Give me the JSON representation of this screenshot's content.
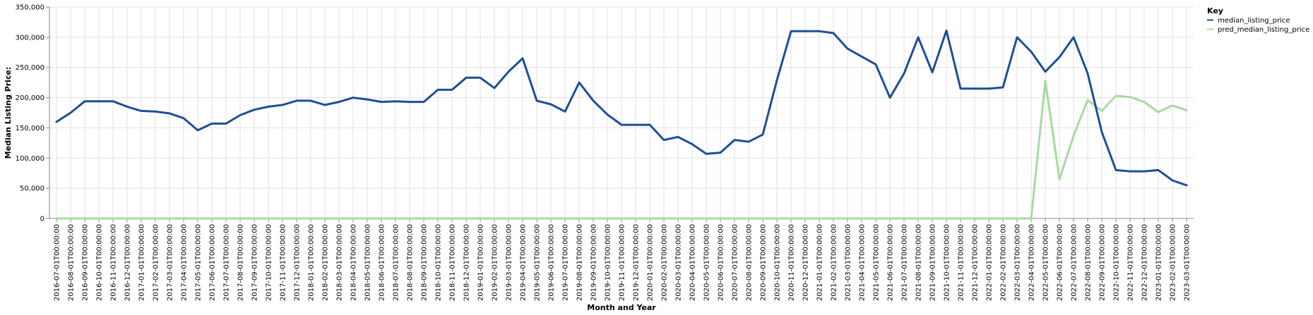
{
  "chart_data": {
    "type": "line",
    "xlabel": "Month and Year",
    "ylabel": "Median Listing Price:",
    "ylim": [
      0,
      350000
    ],
    "yticks": [
      0,
      50000,
      100000,
      150000,
      200000,
      250000,
      300000,
      350000
    ],
    "ytick_labels": [
      "0",
      "50,000",
      "100,000",
      "150,000",
      "200,000",
      "250,000",
      "300,000",
      "350,000"
    ],
    "grid": true,
    "legend": {
      "title": "Key",
      "placement": "top-right"
    },
    "x": [
      "2016-07-01T00:00:00",
      "2016-08-01T00:00:00",
      "2016-09-01T00:00:00",
      "2016-10-01T00:00:00",
      "2016-11-01T00:00:00",
      "2016-12-01T00:00:00",
      "2017-01-01T00:00:00",
      "2017-02-01T00:00:00",
      "2017-03-01T00:00:00",
      "2017-04-01T00:00:00",
      "2017-05-01T00:00:00",
      "2017-06-01T00:00:00",
      "2017-07-01T00:00:00",
      "2017-08-01T00:00:00",
      "2017-09-01T00:00:00",
      "2017-10-01T00:00:00",
      "2017-11-01T00:00:00",
      "2017-12-01T00:00:00",
      "2018-01-01T00:00:00",
      "2018-02-01T00:00:00",
      "2018-03-01T00:00:00",
      "2018-04-01T00:00:00",
      "2018-05-01T00:00:00",
      "2018-06-01T00:00:00",
      "2018-07-01T00:00:00",
      "2018-08-01T00:00:00",
      "2018-09-01T00:00:00",
      "2018-10-01T00:00:00",
      "2018-11-01T00:00:00",
      "2018-12-01T00:00:00",
      "2019-01-01T00:00:00",
      "2019-02-01T00:00:00",
      "2019-03-01T00:00:00",
      "2019-04-01T00:00:00",
      "2019-05-01T00:00:00",
      "2019-06-01T00:00:00",
      "2019-07-01T00:00:00",
      "2019-08-01T00:00:00",
      "2019-09-01T00:00:00",
      "2019-10-01T00:00:00",
      "2019-11-01T00:00:00",
      "2019-12-01T00:00:00",
      "2020-01-01T00:00:00",
      "2020-02-01T00:00:00",
      "2020-03-01T00:00:00",
      "2020-04-01T00:00:00",
      "2020-05-01T00:00:00",
      "2020-06-01T00:00:00",
      "2020-07-01T00:00:00",
      "2020-08-01T00:00:00",
      "2020-09-01T00:00:00",
      "2020-10-01T00:00:00",
      "2020-11-01T00:00:00",
      "2020-12-01T00:00:00",
      "2021-01-01T00:00:00",
      "2021-02-01T00:00:00",
      "2021-03-01T00:00:00",
      "2021-04-01T00:00:00",
      "2021-05-01T00:00:00",
      "2021-06-01T00:00:00",
      "2021-07-01T00:00:00",
      "2021-08-01T00:00:00",
      "2021-09-01T00:00:00",
      "2021-10-01T00:00:00",
      "2021-11-01T00:00:00",
      "2021-12-01T00:00:00",
      "2022-01-01T00:00:00",
      "2022-02-01T00:00:00",
      "2022-03-01T00:00:00",
      "2022-04-01T00:00:00",
      "2022-05-01T00:00:00",
      "2022-06-01T00:00:00",
      "2022-07-01T00:00:00",
      "2022-08-01T00:00:00",
      "2022-09-01T00:00:00",
      "2022-10-01T00:00:00",
      "2022-11-01T00:00:00",
      "2022-12-01T00:00:00",
      "2023-01-01T00:00:00",
      "2023-02-01T00:00:00",
      "2023-03-01T00:00:00"
    ],
    "series": [
      {
        "name": "median_listing_price",
        "color": "#1f4e96",
        "values": [
          160000,
          175000,
          194000,
          194000,
          194000,
          185000,
          178000,
          177000,
          174000,
          166000,
          146000,
          157000,
          157000,
          171000,
          180000,
          185000,
          188000,
          195000,
          195000,
          188000,
          193000,
          200000,
          197000,
          193000,
          194000,
          193000,
          193000,
          213000,
          213000,
          233000,
          233000,
          216000,
          243000,
          265000,
          195000,
          189000,
          177000,
          225000,
          195000,
          172000,
          155000,
          155000,
          155000,
          130000,
          135000,
          123000,
          107000,
          109000,
          130000,
          127000,
          139000,
          229000,
          310000,
          310000,
          310000,
          307000,
          281000,
          268000,
          255000,
          200000,
          240000,
          300000,
          242000,
          311000,
          215000,
          215000,
          215000,
          217000,
          300000,
          276000,
          243000,
          267000,
          300000,
          240000,
          143000,
          80000,
          78000,
          78000,
          80000,
          63000,
          55000
        ]
      },
      {
        "name": "pred_median_listing_price",
        "color": "#a6dba0",
        "values": [
          0,
          0,
          0,
          0,
          0,
          0,
          0,
          0,
          0,
          0,
          0,
          0,
          0,
          0,
          0,
          0,
          0,
          0,
          0,
          0,
          0,
          0,
          0,
          0,
          0,
          0,
          0,
          0,
          0,
          0,
          0,
          0,
          0,
          0,
          0,
          0,
          0,
          0,
          0,
          0,
          0,
          0,
          0,
          0,
          0,
          0,
          0,
          0,
          0,
          0,
          0,
          0,
          0,
          0,
          0,
          0,
          0,
          0,
          0,
          0,
          0,
          0,
          0,
          0,
          0,
          0,
          0,
          0,
          0,
          0,
          228000,
          65000,
          137000,
          196000,
          178000,
          203000,
          201000,
          193000,
          176000,
          187000,
          179000
        ]
      }
    ]
  }
}
